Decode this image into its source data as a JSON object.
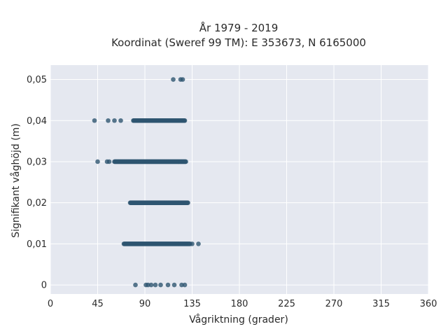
{
  "chart_data": {
    "type": "scatter",
    "title_line1": "År 1979 - 2019",
    "title_line2": "Koordinat (Sweref 99 TM): E 353673, N 6165000",
    "xlabel": "Vågriktning (grader)",
    "ylabel": "Signifikant våghöjd (m)",
    "xlim": [
      0,
      360
    ],
    "ylim": [
      -0.0022,
      0.0535
    ],
    "x_ticks": [
      0,
      45,
      90,
      135,
      180,
      225,
      270,
      315,
      360
    ],
    "y_ticks": [
      0,
      0.01,
      0.02,
      0.03,
      0.04,
      0.05
    ],
    "y_tick_labels": [
      "0",
      "0,01",
      "0,02",
      "0,03",
      "0,04",
      "0,05"
    ],
    "grid": true,
    "plot_background": "#e5e8f0",
    "marker_color": "#2e5570",
    "series": [
      {
        "y": 0.0,
        "points": [
          81,
          91,
          93,
          96,
          100,
          105,
          112,
          118,
          125,
          128
        ],
        "bands": []
      },
      {
        "y": 0.01,
        "points": [
          141,
          135
        ],
        "bands": [
          [
            70,
            133
          ]
        ]
      },
      {
        "y": 0.02,
        "points": [],
        "bands": [
          [
            76,
            131
          ]
        ]
      },
      {
        "y": 0.03,
        "points": [
          45,
          54,
          56
        ],
        "bands": [
          [
            61,
            129
          ]
        ]
      },
      {
        "y": 0.04,
        "points": [
          42,
          55,
          61,
          67
        ],
        "bands": [
          [
            79,
            128
          ]
        ]
      },
      {
        "y": 0.05,
        "points": [
          117,
          124,
          126
        ],
        "bands": []
      }
    ]
  }
}
